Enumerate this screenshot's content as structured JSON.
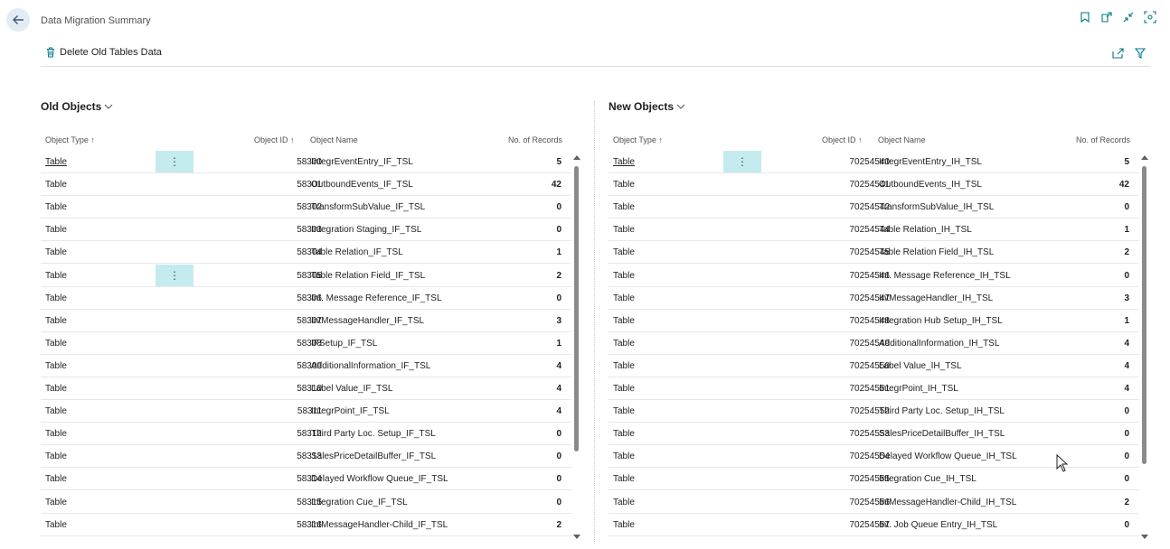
{
  "page": {
    "title": "Data Migration Summary"
  },
  "actions": {
    "delete_label": "Delete Old Tables Data"
  },
  "columns": {
    "type": "Object Type",
    "id": "Object ID",
    "name": "Object Name",
    "records": "No. of Records",
    "sort_marker": "↑"
  },
  "old_objects": {
    "title": "Old Objects",
    "rows": [
      {
        "type": "Table",
        "id": "58300",
        "name": "IntegrEventEntry_IF_TSL",
        "records": "5"
      },
      {
        "type": "Table",
        "id": "58301",
        "name": "OutboundEvents_IF_TSL",
        "records": "42"
      },
      {
        "type": "Table",
        "id": "58302",
        "name": "TransformSubValue_IF_TSL",
        "records": "0"
      },
      {
        "type": "Table",
        "id": "58303",
        "name": "Integration Staging_IF_TSL",
        "records": "0"
      },
      {
        "type": "Table",
        "id": "58304",
        "name": "Table Relation_IF_TSL",
        "records": "1"
      },
      {
        "type": "Table",
        "id": "58305",
        "name": "Table Relation Field_IF_TSL",
        "records": "2"
      },
      {
        "type": "Table",
        "id": "58306",
        "name": "Int. Message Reference_IF_TSL",
        "records": "0"
      },
      {
        "type": "Table",
        "id": "58307",
        "name": "IntMessageHandler_IF_TSL",
        "records": "3"
      },
      {
        "type": "Table",
        "id": "58308",
        "name": "IFSetup_IF_TSL",
        "records": "1"
      },
      {
        "type": "Table",
        "id": "58309",
        "name": "AdditionalInformation_IF_TSL",
        "records": "4"
      },
      {
        "type": "Table",
        "id": "58310",
        "name": "Label Value_IF_TSL",
        "records": "4"
      },
      {
        "type": "Table",
        "id": "58311",
        "name": "IntegrPoint_IF_TSL",
        "records": "4"
      },
      {
        "type": "Table",
        "id": "58312",
        "name": "Third Party Loc. Setup_IF_TSL",
        "records": "0"
      },
      {
        "type": "Table",
        "id": "58313",
        "name": "SalesPriceDetailBuffer_IF_TSL",
        "records": "0"
      },
      {
        "type": "Table",
        "id": "58314",
        "name": "Delayed Workflow Queue_IF_TSL",
        "records": "0"
      },
      {
        "type": "Table",
        "id": "58315",
        "name": "Integration Cue_IF_TSL",
        "records": "0"
      },
      {
        "type": "Table",
        "id": "58316",
        "name": "IntMessageHandler-Child_IF_TSL",
        "records": "2"
      }
    ]
  },
  "new_objects": {
    "title": "New Objects",
    "rows": [
      {
        "type": "Table",
        "id": "70254540",
        "name": "IntegrEventEntry_IH_TSL",
        "records": "5"
      },
      {
        "type": "Table",
        "id": "70254541",
        "name": "OutboundEvents_IH_TSL",
        "records": "42"
      },
      {
        "type": "Table",
        "id": "70254542",
        "name": "TransformSubValue_IH_TSL",
        "records": "0"
      },
      {
        "type": "Table",
        "id": "70254544",
        "name": "Table Relation_IH_TSL",
        "records": "1"
      },
      {
        "type": "Table",
        "id": "70254545",
        "name": "Table Relation Field_IH_TSL",
        "records": "2"
      },
      {
        "type": "Table",
        "id": "70254546",
        "name": "Int. Message Reference_IH_TSL",
        "records": "0"
      },
      {
        "type": "Table",
        "id": "70254547",
        "name": "IntMessageHandler_IH_TSL",
        "records": "3"
      },
      {
        "type": "Table",
        "id": "70254548",
        "name": "Integration Hub Setup_IH_TSL",
        "records": "1"
      },
      {
        "type": "Table",
        "id": "70254549",
        "name": "AdditionalInformation_IH_TSL",
        "records": "4"
      },
      {
        "type": "Table",
        "id": "70254550",
        "name": "Label Value_IH_TSL",
        "records": "4"
      },
      {
        "type": "Table",
        "id": "70254551",
        "name": "IntegrPoint_IH_TSL",
        "records": "4"
      },
      {
        "type": "Table",
        "id": "70254552",
        "name": "Third Party Loc. Setup_IH_TSL",
        "records": "0"
      },
      {
        "type": "Table",
        "id": "70254553",
        "name": "SalesPriceDetailBuffer_IH_TSL",
        "records": "0"
      },
      {
        "type": "Table",
        "id": "70254554",
        "name": "Delayed Workflow Queue_IH_TSL",
        "records": "0"
      },
      {
        "type": "Table",
        "id": "70254555",
        "name": "Integration Cue_IH_TSL",
        "records": "0"
      },
      {
        "type": "Table",
        "id": "70254556",
        "name": "IntMessageHandler-Child_IH_TSL",
        "records": "2"
      },
      {
        "type": "Table",
        "id": "70254557",
        "name": "Int. Job Queue Entry_IH_TSL",
        "records": "0"
      }
    ]
  },
  "icons": {
    "back": "back-arrow-icon",
    "bookmark": "bookmark-icon",
    "open_new": "open-in-new-window-icon",
    "collapse": "collapse-icon",
    "focus": "focus-mode-icon",
    "delete": "trash-icon",
    "share": "share-icon",
    "filter": "filter-icon",
    "row_actions": "more-options-icon"
  },
  "colors": {
    "accent": "#00788a",
    "row_action_bg": "#c4ecef",
    "back_button_bg": "#e3ecf3"
  }
}
